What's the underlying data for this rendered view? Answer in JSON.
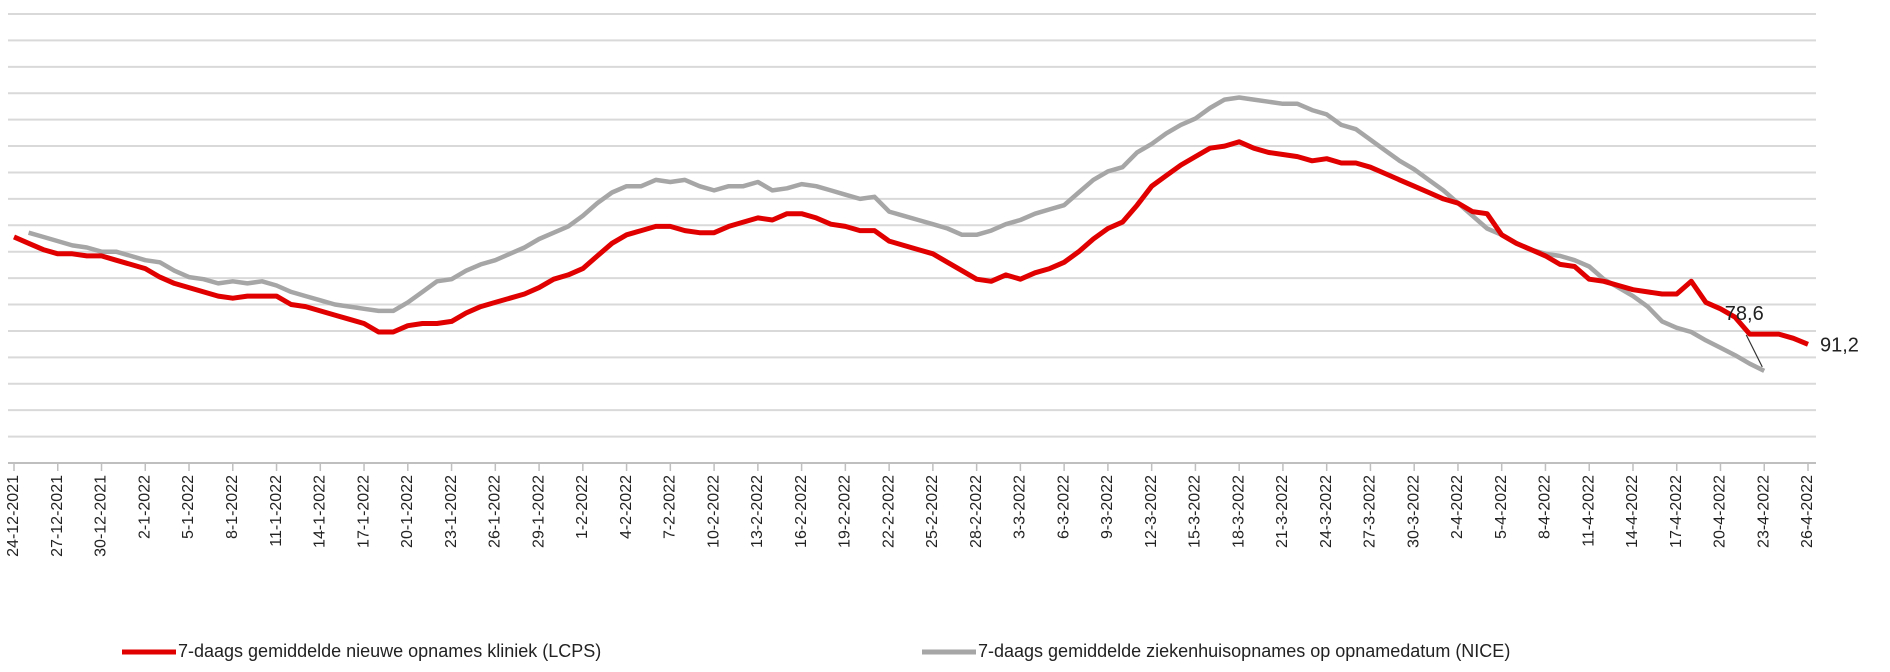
{
  "chart_data": {
    "type": "line",
    "categories": [
      "24-12-2021",
      null,
      null,
      "27-12-2021",
      null,
      null,
      "30-12-2021",
      null,
      null,
      "2-1-2022",
      null,
      null,
      "5-1-2022",
      null,
      null,
      "8-1-2022",
      null,
      null,
      "11-1-2022",
      null,
      null,
      "14-1-2022",
      null,
      null,
      "17-1-2022",
      null,
      null,
      "20-1-2022",
      null,
      null,
      "23-1-2022",
      null,
      null,
      "26-1-2022",
      null,
      null,
      "29-1-2022",
      null,
      null,
      "1-2-2022",
      null,
      null,
      "4-2-2022",
      null,
      null,
      "7-2-2022",
      null,
      null,
      "10-2-2022",
      null,
      null,
      "13-2-2022",
      null,
      null,
      "16-2-2022",
      null,
      null,
      "19-2-2022",
      null,
      null,
      "22-2-2022",
      null,
      null,
      "25-2-2022",
      null,
      null,
      "28-2-2022",
      null,
      null,
      "3-3-2022",
      null,
      null,
      "6-3-2022",
      null,
      null,
      "9-3-2022",
      null,
      null,
      "12-3-2022",
      null,
      null,
      "15-3-2022",
      null,
      null,
      "18-3-2022",
      null,
      null,
      "21-3-2022",
      null,
      null,
      "24-3-2022",
      null,
      null,
      "27-3-2022",
      null,
      null,
      "30-3-2022",
      null,
      null,
      "2-4-2022",
      null,
      null,
      "5-4-2022",
      null,
      null,
      "8-4-2022",
      null,
      null,
      "11-4-2022",
      null,
      null,
      "14-4-2022",
      null,
      null,
      "17-4-2022",
      null,
      null,
      "20-4-2022",
      null,
      null,
      "23-4-2022",
      null,
      null,
      "26-4-2022"
    ],
    "series": [
      {
        "name": "7-daags gemiddelde nieuwe opnames kliniek (LCPS)",
        "color": "#e00000",
        "values": [
          142,
          139,
          136,
          134,
          134,
          133,
          133,
          131,
          129,
          127,
          123,
          120,
          118,
          116,
          114,
          113,
          114,
          114,
          114,
          110,
          109,
          107,
          105,
          103,
          101,
          97,
          97,
          100,
          101,
          101,
          102,
          106,
          109,
          111,
          113,
          115,
          118,
          122,
          124,
          127,
          133,
          139,
          143,
          145,
          147,
          147,
          145,
          144,
          144,
          147,
          149,
          151,
          150,
          153,
          153,
          151,
          148,
          147,
          145,
          145,
          140,
          138,
          136,
          134,
          130,
          126,
          122,
          121,
          124,
          122,
          125,
          127,
          130,
          135,
          141,
          146,
          149,
          157,
          166,
          171,
          176,
          180,
          184,
          185,
          187,
          184,
          182,
          181,
          180,
          178,
          179,
          177,
          177,
          175,
          172,
          169,
          166,
          163,
          160,
          158,
          154,
          153,
          143,
          139,
          136,
          133,
          129,
          128,
          122,
          121,
          119,
          117,
          116,
          115,
          115,
          121,
          111,
          108,
          104,
          96,
          96,
          96,
          94,
          91.2
        ],
        "value_labels": [
          null,
          null,
          null,
          null,
          null,
          null,
          null,
          null,
          null,
          null,
          null,
          null,
          null,
          null,
          null,
          null,
          null,
          null,
          null,
          null,
          null,
          null,
          null,
          null,
          null,
          null,
          null,
          null,
          null,
          null,
          null,
          null,
          null,
          null,
          null,
          null,
          null,
          null,
          null,
          null,
          null,
          null,
          null,
          null,
          null,
          null,
          null,
          null,
          null,
          null,
          null,
          null,
          null,
          null,
          null,
          null,
          null,
          null,
          null,
          null,
          null,
          null,
          null,
          null,
          null,
          null,
          null,
          null,
          null,
          null,
          null,
          null,
          null,
          null,
          null,
          null,
          null,
          null,
          null,
          null,
          null,
          null,
          null,
          null,
          null,
          null,
          null,
          null,
          null,
          null,
          null,
          null,
          null,
          null,
          null,
          null,
          null,
          null,
          null,
          null,
          null,
          null,
          null,
          null,
          null,
          null,
          null,
          null,
          null,
          null,
          null,
          null,
          null,
          null,
          null,
          null,
          null,
          null,
          null,
          null,
          null,
          null,
          null,
          "91,2"
        ]
      },
      {
        "name": "7-daags gemiddelde ziekenhuisopnames op opnamedatum (NICE)",
        "color": "#a6a6a6",
        "values": [
          null,
          144,
          142,
          140,
          138,
          137,
          135,
          135,
          133,
          131,
          130,
          126,
          123,
          122,
          120,
          121,
          120,
          121,
          119,
          116,
          114,
          112,
          110,
          109,
          108,
          107,
          107,
          111,
          116,
          121,
          122,
          126,
          129,
          131,
          134,
          137,
          141,
          144,
          147,
          152,
          158,
          163,
          166,
          166,
          169,
          168,
          169,
          166,
          164,
          166,
          166,
          168,
          164,
          165,
          167,
          166,
          164,
          162,
          160,
          161,
          154,
          152,
          150,
          148,
          146,
          143,
          143,
          145,
          148,
          150,
          153,
          155,
          157,
          163,
          169,
          173,
          175,
          182,
          186,
          191,
          195,
          198,
          203,
          207,
          208,
          207,
          206,
          205,
          205,
          202,
          200,
          195,
          193,
          188,
          183,
          178,
          174,
          169,
          164,
          158,
          152,
          146,
          143,
          139,
          136,
          134,
          133,
          131,
          128,
          122,
          118,
          114,
          109,
          102,
          99,
          97,
          93,
          89.5,
          86,
          82,
          78.6,
          null,
          null,
          null
        ],
        "value_labels": [
          null,
          null,
          null,
          null,
          null,
          null,
          null,
          null,
          null,
          null,
          null,
          null,
          null,
          null,
          null,
          null,
          null,
          null,
          null,
          null,
          null,
          null,
          null,
          null,
          null,
          null,
          null,
          null,
          null,
          null,
          null,
          null,
          null,
          null,
          null,
          null,
          null,
          null,
          null,
          null,
          null,
          null,
          null,
          null,
          null,
          null,
          null,
          null,
          null,
          null,
          null,
          null,
          null,
          null,
          null,
          null,
          null,
          null,
          null,
          null,
          null,
          null,
          null,
          null,
          null,
          null,
          null,
          null,
          null,
          null,
          null,
          null,
          null,
          null,
          null,
          null,
          null,
          null,
          null,
          null,
          null,
          null,
          null,
          null,
          null,
          null,
          null,
          null,
          null,
          null,
          null,
          null,
          null,
          null,
          null,
          null,
          null,
          null,
          null,
          null,
          null,
          null,
          null,
          null,
          null,
          null,
          null,
          null,
          null,
          null,
          null,
          null,
          null,
          null,
          null,
          null,
          null,
          null,
          null,
          null,
          "78,6",
          null,
          null,
          null
        ]
      }
    ],
    "ylim": [
      35,
      247.5
    ],
    "yticks": [
      35,
      47.5,
      60,
      72.5,
      85,
      97.5,
      110,
      122.5,
      135,
      147.5,
      160,
      172.5,
      185,
      197.5,
      210,
      222.5,
      235,
      247.5
    ],
    "grid": true,
    "legend": "bottom"
  }
}
